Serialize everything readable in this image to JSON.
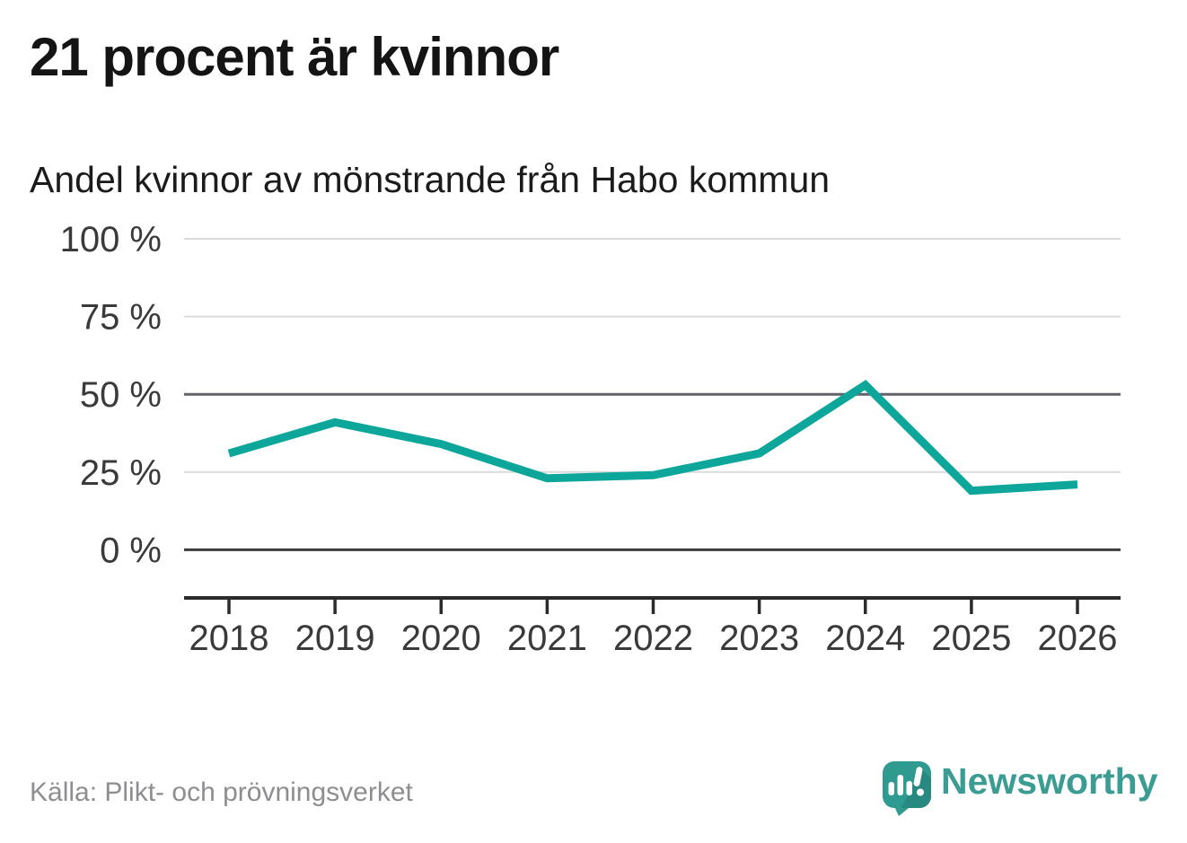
{
  "chart_data": {
    "type": "line",
    "title": "21 procent är kvinnor",
    "subtitle": "Andel kvinnor av mönstrande från Habo kommun",
    "x": [
      "2018",
      "2019",
      "2020",
      "2021",
      "2022",
      "2023",
      "2024",
      "2025",
      "2026"
    ],
    "series": [
      {
        "values": [
          31,
          41,
          34,
          23,
          24,
          31,
          53,
          19,
          21
        ]
      }
    ],
    "ylim": [
      0,
      100
    ],
    "yticks": [
      0,
      25,
      50,
      75,
      100
    ],
    "ytick_labels": [
      "0 %",
      "25 %",
      "50 %",
      "75 %",
      "100 %"
    ],
    "grid": "horizontal",
    "legend": "none",
    "line_color": "#0da69b",
    "line_width": 9,
    "axis_color": "#2b2b2b",
    "gridline_colors": {
      "default": "#dadada",
      "50": "#63626b",
      "0": "#3b3b3d"
    }
  },
  "footer": {
    "source": "Källa: Plikt- och prövningsverket",
    "brand": "Newsworthy",
    "brand_color": "#3b9c94",
    "logo_color": "#2f9a90",
    "logo_shadow_color": "#27897f"
  }
}
